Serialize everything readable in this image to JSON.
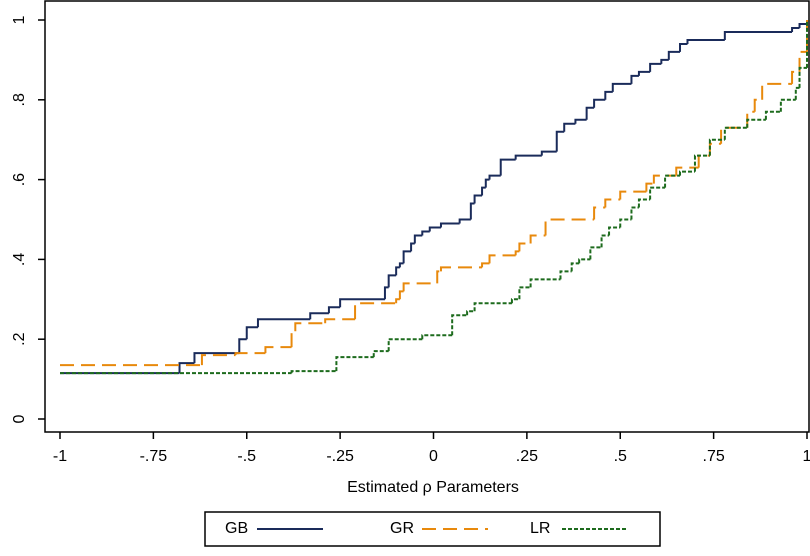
{
  "chart_data": {
    "type": "step",
    "xlabel": "Estimated ρ Parameters",
    "xlim": [
      -1,
      1
    ],
    "ylim": [
      0,
      1
    ],
    "xticks": [
      -1,
      {
        "value": -0.75,
        "label": "-.75"
      },
      {
        "value": -0.5,
        "label": "-.5"
      },
      {
        "value": -0.25,
        "label": "-.25"
      },
      0,
      {
        "value": 0.25,
        "label": ".25"
      },
      {
        "value": 0.5,
        "label": ".5"
      },
      {
        "value": 0.75,
        "label": ".75"
      },
      1
    ],
    "yticks": [
      0,
      {
        "value": 0.2,
        "label": ".2"
      },
      {
        "value": 0.4,
        "label": ".4"
      },
      {
        "value": 0.6,
        "label": ".6"
      },
      {
        "value": 0.8,
        "label": ".8"
      },
      1
    ],
    "series": [
      {
        "name": "GB",
        "color": "#1a2b5a",
        "dash": "none",
        "x": [
          -1,
          -0.68,
          -0.64,
          -0.52,
          -0.5,
          -0.47,
          -0.33,
          -0.28,
          -0.25,
          -0.13,
          -0.12,
          -0.1,
          -0.09,
          -0.08,
          -0.06,
          -0.05,
          -0.03,
          -0.01,
          0.02,
          0.07,
          0.1,
          0.11,
          0.13,
          0.14,
          0.15,
          0.18,
          0.22,
          0.29,
          0.33,
          0.35,
          0.38,
          0.41,
          0.43,
          0.46,
          0.48,
          0.53,
          0.55,
          0.58,
          0.61,
          0.63,
          0.66,
          0.68,
          0.78,
          0.96,
          0.98,
          1
        ],
        "values": [
          0.115,
          0.14,
          0.165,
          0.2,
          0.23,
          0.25,
          0.265,
          0.28,
          0.3,
          0.33,
          0.36,
          0.38,
          0.39,
          0.42,
          0.44,
          0.46,
          0.47,
          0.48,
          0.49,
          0.5,
          0.54,
          0.56,
          0.58,
          0.6,
          0.61,
          0.65,
          0.66,
          0.67,
          0.72,
          0.74,
          0.75,
          0.78,
          0.8,
          0.82,
          0.84,
          0.86,
          0.87,
          0.89,
          0.9,
          0.92,
          0.94,
          0.95,
          0.97,
          0.98,
          0.99,
          1
        ]
      },
      {
        "name": "GR",
        "color": "#e8890c",
        "dash": "14,7",
        "x": [
          -1,
          -0.62,
          -0.53,
          -0.45,
          -0.38,
          -0.37,
          -0.29,
          -0.21,
          -0.1,
          -0.09,
          -0.08,
          0.01,
          0.02,
          0.13,
          0.15,
          0.22,
          0.23,
          0.26,
          0.3,
          0.43,
          0.46,
          0.5,
          0.57,
          0.59,
          0.65,
          0.71,
          0.74,
          0.77,
          0.84,
          0.86,
          0.88,
          0.96,
          0.98,
          1
        ],
        "values": [
          0.135,
          0.16,
          0.165,
          0.18,
          0.22,
          0.24,
          0.25,
          0.29,
          0.3,
          0.32,
          0.34,
          0.37,
          0.38,
          0.39,
          0.41,
          0.42,
          0.44,
          0.46,
          0.5,
          0.53,
          0.55,
          0.57,
          0.59,
          0.61,
          0.63,
          0.66,
          0.69,
          0.73,
          0.77,
          0.8,
          0.84,
          0.87,
          0.92,
          1
        ]
      },
      {
        "name": "LR",
        "color": "#1d6b1d",
        "dash": "4,2",
        "x": [
          -1,
          -0.38,
          -0.26,
          -0.16,
          -0.12,
          -0.03,
          0.05,
          0.09,
          0.11,
          0.21,
          0.23,
          0.26,
          0.34,
          0.37,
          0.39,
          0.42,
          0.45,
          0.47,
          0.5,
          0.53,
          0.55,
          0.58,
          0.62,
          0.66,
          0.7,
          0.74,
          0.78,
          0.84,
          0.89,
          0.93,
          0.97,
          0.98,
          1
        ],
        "values": [
          0.115,
          0.12,
          0.155,
          0.17,
          0.2,
          0.21,
          0.26,
          0.27,
          0.29,
          0.3,
          0.33,
          0.35,
          0.37,
          0.39,
          0.4,
          0.43,
          0.46,
          0.48,
          0.5,
          0.53,
          0.55,
          0.58,
          0.61,
          0.62,
          0.66,
          0.7,
          0.73,
          0.75,
          0.77,
          0.8,
          0.83,
          0.88,
          1
        ]
      }
    ]
  }
}
